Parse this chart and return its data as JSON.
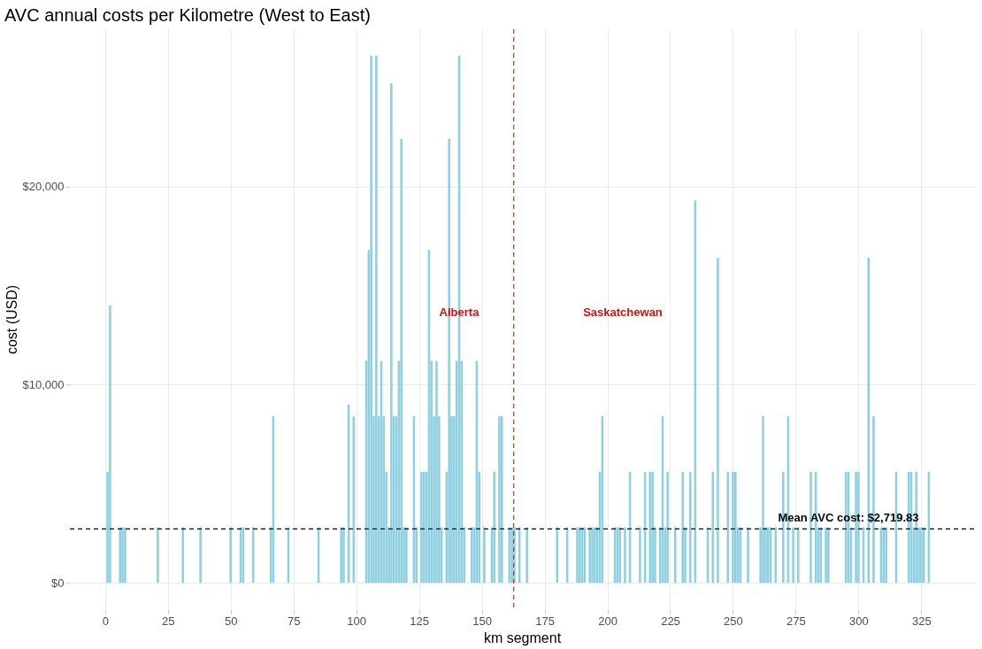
{
  "chart_data": {
    "type": "bar",
    "title": "AVC annual costs per Kilometre (West to East)",
    "xlabel": "km segment",
    "ylabel": "cost (USD)",
    "x": [
      1,
      2,
      6,
      7,
      8,
      21,
      31,
      38,
      50,
      54,
      55,
      59,
      66,
      67,
      73,
      85,
      94,
      95,
      97,
      99,
      104,
      105,
      106,
      107,
      108,
      109,
      110,
      111,
      112,
      113,
      114,
      115,
      116,
      117,
      118,
      119,
      120,
      123,
      124,
      126,
      127,
      128,
      129,
      130,
      131,
      132,
      133,
      134,
      136,
      137,
      138,
      139,
      140,
      141,
      142,
      143,
      146,
      147,
      148,
      149,
      151,
      154,
      155,
      157,
      158,
      161,
      162,
      163,
      165,
      168,
      180,
      184,
      188,
      189,
      190,
      191,
      193,
      194,
      195,
      196,
      197,
      198,
      203,
      204,
      205,
      207,
      209,
      213,
      215,
      217,
      218,
      219,
      221,
      222,
      223,
      224,
      227,
      230,
      231,
      233,
      235,
      240,
      242,
      244,
      248,
      250,
      251,
      252,
      253,
      256,
      261,
      262,
      263,
      264,
      265,
      267,
      270,
      272,
      274,
      276,
      281,
      283,
      284,
      285,
      287,
      288,
      295,
      296,
      297,
      299,
      300,
      302,
      304,
      306,
      309,
      310,
      311,
      315,
      320,
      321,
      322,
      323,
      324,
      325,
      326,
      328
    ],
    "values": [
      5600,
      14000,
      2800,
      2800,
      2800,
      2800,
      2800,
      2800,
      2800,
      2800,
      2800,
      2800,
      2800,
      8400,
      2800,
      2800,
      2800,
      2800,
      9000,
      8400,
      11200,
      16800,
      26600,
      8400,
      26600,
      8400,
      11200,
      8400,
      5600,
      2800,
      25200,
      8400,
      8400,
      11200,
      22400,
      2800,
      2800,
      8400,
      2800,
      5600,
      5600,
      5600,
      16800,
      11200,
      8400,
      11200,
      8400,
      2800,
      5600,
      22400,
      8400,
      8400,
      11200,
      26600,
      11200,
      2800,
      2800,
      2800,
      11200,
      5600,
      2800,
      2800,
      5600,
      8400,
      8400,
      2800,
      2800,
      2800,
      2800,
      2800,
      2800,
      2800,
      2800,
      2800,
      2800,
      2800,
      2800,
      2800,
      2800,
      2800,
      5600,
      8400,
      2800,
      2800,
      2800,
      2800,
      5600,
      2800,
      5600,
      5600,
      5600,
      2800,
      2800,
      8400,
      2800,
      5600,
      2800,
      5600,
      2800,
      5600,
      19300,
      2800,
      5600,
      16400,
      5600,
      5600,
      5600,
      2800,
      2800,
      2800,
      2800,
      8400,
      2800,
      2800,
      2800,
      2800,
      5600,
      8400,
      2800,
      2800,
      5600,
      5600,
      2800,
      2800,
      2800,
      2800,
      5600,
      5600,
      2800,
      5600,
      5600,
      2800,
      16400,
      8400,
      2800,
      2800,
      2800,
      5600,
      5600,
      5600,
      2800,
      5600,
      2800,
      2800,
      2800,
      5600
    ],
    "color": "#8ecfe0",
    "xlim": [
      -14,
      346
    ],
    "xticks": [
      0,
      25,
      50,
      75,
      100,
      125,
      150,
      175,
      200,
      225,
      250,
      275,
      300,
      325
    ],
    "ylim": [
      -1330,
      27930
    ],
    "yticks": [
      {
        "value": 0,
        "label": "$0"
      },
      {
        "value": 10000,
        "label": "$10,000"
      },
      {
        "value": 20000,
        "label": "$20,000"
      }
    ],
    "grid": true,
    "ref_lines": [
      {
        "axis": "y",
        "value": 2719.83,
        "label": "Mean AVC cost: $2,719.83",
        "color": "#000000",
        "line_style": "dashed"
      },
      {
        "axis": "x",
        "value": 162.7,
        "color": "#b2442c",
        "line_style": "dashed"
      }
    ],
    "annotations": [
      "Alberta",
      "Saskatchewan"
    ]
  }
}
